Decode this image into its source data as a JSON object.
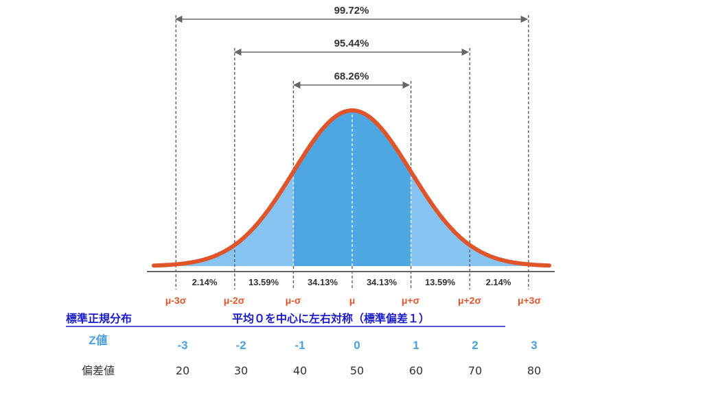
{
  "colors": {
    "curve": "#e0542a",
    "fill_dark": "#4ea6e2",
    "fill_light": "#86c3f1",
    "accent_red": "#e0542a",
    "z_blue": "#4a9fdc",
    "heading_blue": "#1a1acc",
    "text": "#333333",
    "axis": "#666666"
  },
  "intervals": [
    {
      "label": "99.72%"
    },
    {
      "label": "95.44%"
    },
    {
      "label": "68.26%"
    }
  ],
  "segments": [
    "2.14%",
    "13.59%",
    "34.13%",
    "34.13%",
    "13.59%",
    "2.14%"
  ],
  "positions": [
    {
      "mu_label": "μ-3σ",
      "z": "-3",
      "deviation": "20"
    },
    {
      "mu_label": "μ-2σ",
      "z": "-2",
      "deviation": "30"
    },
    {
      "mu_label": "μ-σ",
      "z": "-1",
      "deviation": "40"
    },
    {
      "mu_label": "μ",
      "z": "0",
      "deviation": "50"
    },
    {
      "mu_label": "μ+σ",
      "z": "1",
      "deviation": "60"
    },
    {
      "mu_label": "μ+2σ",
      "z": "2",
      "deviation": "70"
    },
    {
      "mu_label": "μ+3σ",
      "z": "3",
      "deviation": "80"
    }
  ],
  "headings": {
    "title": "標準正規分布",
    "description": "平均０を中心に左右対称（標準偏差１）",
    "z_row": "Z値",
    "deviation_row": "偏差値"
  }
}
